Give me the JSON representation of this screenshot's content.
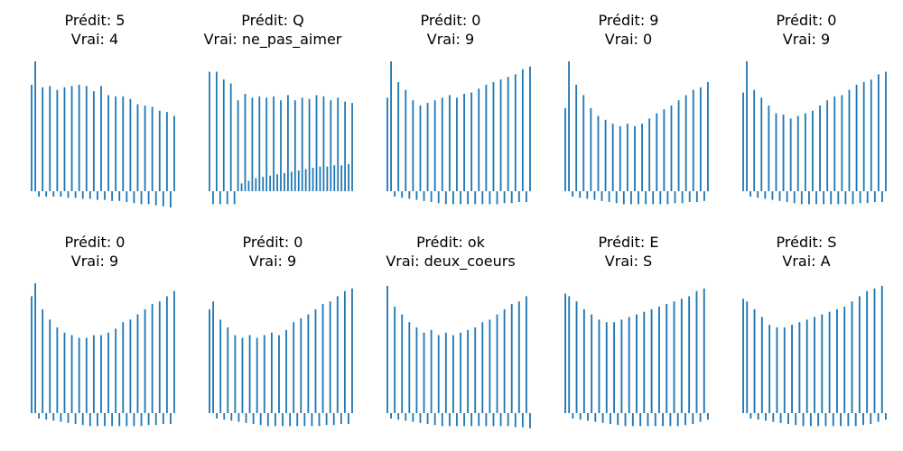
{
  "figure": {
    "bar_color": "#1f77b4",
    "background": "#ffffff"
  },
  "chart_data": [
    {
      "type": "bar",
      "title_pred": "Prédit: 5",
      "title_true": "Vrai: 4",
      "axes_visible": false,
      "grid": false,
      "values": [
        0.82,
        1.0,
        -0.05,
        0.8,
        -0.05,
        0.81,
        -0.05,
        0.78,
        -0.05,
        0.8,
        -0.06,
        0.81,
        -0.06,
        0.82,
        -0.07,
        0.81,
        -0.07,
        0.77,
        -0.08,
        0.81,
        -0.08,
        0.74,
        -0.09,
        0.73,
        -0.09,
        0.73,
        -0.1,
        0.71,
        -0.11,
        0.67,
        -0.12,
        0.66,
        -0.12,
        0.65,
        -0.13,
        0.62,
        -0.14,
        0.61,
        -0.15,
        0.58
      ]
    },
    {
      "type": "bar",
      "title_pred": "Prédit: Q",
      "title_true": "Vrai: ne_pas_aimer",
      "axes_visible": false,
      "grid": false,
      "values": [
        0.92,
        -0.12,
        0.92,
        -0.12,
        0.86,
        -0.12,
        0.83,
        -0.12,
        0.7,
        0.06,
        0.75,
        0.08,
        0.72,
        0.1,
        0.73,
        0.11,
        0.72,
        0.12,
        0.73,
        0.13,
        0.7,
        0.14,
        0.74,
        0.15,
        0.7,
        0.16,
        0.72,
        0.17,
        0.71,
        0.18,
        0.74,
        0.19,
        0.73,
        0.19,
        0.7,
        0.2,
        0.72,
        0.2,
        0.69,
        0.21,
        0.68
      ]
    },
    {
      "type": "bar",
      "title_pred": "Prédit: 0",
      "title_true": "Vrai: 9",
      "axes_visible": false,
      "grid": false,
      "values": [
        0.72,
        1.0,
        -0.05,
        0.84,
        -0.06,
        0.78,
        -0.07,
        0.7,
        -0.08,
        0.66,
        -0.09,
        0.68,
        -0.1,
        0.7,
        -0.11,
        0.72,
        -0.12,
        0.74,
        -0.12,
        0.72,
        -0.12,
        0.75,
        -0.12,
        0.76,
        -0.12,
        0.79,
        -0.12,
        0.82,
        -0.12,
        0.84,
        -0.12,
        0.86,
        -0.11,
        0.88,
        -0.11,
        0.9,
        -0.1,
        0.94,
        -0.1,
        0.96
      ]
    },
    {
      "type": "bar",
      "title_pred": "Prédit: 9",
      "title_true": "Vrai: 0",
      "axes_visible": false,
      "grid": false,
      "values": [
        0.64,
        1.0,
        -0.05,
        0.82,
        -0.06,
        0.74,
        -0.07,
        0.64,
        -0.08,
        0.58,
        -0.09,
        0.55,
        -0.1,
        0.52,
        -0.11,
        0.5,
        -0.12,
        0.52,
        -0.12,
        0.5,
        -0.12,
        0.52,
        -0.12,
        0.56,
        -0.12,
        0.6,
        -0.12,
        0.63,
        -0.12,
        0.66,
        -0.11,
        0.7,
        -0.11,
        0.74,
        -0.1,
        0.78,
        -0.1,
        0.8,
        -0.09,
        0.84
      ]
    },
    {
      "type": "bar",
      "title_pred": "Prédit: 0",
      "title_true": "Vrai: 9",
      "axes_visible": false,
      "grid": false,
      "values": [
        0.76,
        1.0,
        -0.05,
        0.78,
        -0.06,
        0.72,
        -0.07,
        0.66,
        -0.08,
        0.6,
        -0.09,
        0.59,
        -0.1,
        0.56,
        -0.11,
        0.58,
        -0.12,
        0.6,
        -0.12,
        0.62,
        -0.12,
        0.66,
        -0.12,
        0.7,
        -0.12,
        0.73,
        -0.12,
        0.74,
        -0.12,
        0.78,
        -0.12,
        0.82,
        -0.11,
        0.84,
        -0.11,
        0.86,
        -0.1,
        0.9,
        -0.1,
        0.92
      ]
    },
    {
      "type": "bar",
      "title_pred": "Prédit: 0",
      "title_true": "Vrai: 9",
      "axes_visible": false,
      "grid": false,
      "values": [
        0.9,
        1.0,
        -0.05,
        0.8,
        -0.06,
        0.72,
        -0.07,
        0.66,
        -0.08,
        0.62,
        -0.09,
        0.6,
        -0.1,
        0.58,
        -0.11,
        0.58,
        -0.12,
        0.6,
        -0.12,
        0.6,
        -0.12,
        0.62,
        -0.12,
        0.65,
        -0.12,
        0.7,
        -0.12,
        0.72,
        -0.12,
        0.76,
        -0.12,
        0.8,
        -0.11,
        0.84,
        -0.11,
        0.86,
        -0.1,
        0.9,
        -0.1,
        0.94
      ]
    },
    {
      "type": "bar",
      "title_pred": "Prédit: 0",
      "title_true": "Vrai: 9",
      "axes_visible": false,
      "grid": false,
      "values": [
        0.8,
        0.86,
        -0.05,
        0.72,
        -0.06,
        0.66,
        -0.07,
        0.6,
        -0.08,
        0.58,
        -0.09,
        0.6,
        -0.1,
        0.58,
        -0.11,
        0.6,
        -0.12,
        0.62,
        -0.12,
        0.6,
        -0.12,
        0.64,
        -0.12,
        0.7,
        -0.12,
        0.73,
        -0.12,
        0.76,
        -0.12,
        0.8,
        -0.12,
        0.84,
        -0.11,
        0.86,
        -0.11,
        0.9,
        -0.1,
        0.94,
        -0.1,
        0.96
      ]
    },
    {
      "type": "bar",
      "title_pred": "Prédit: ok",
      "title_true": "Vrai: deux_coeurs",
      "axes_visible": false,
      "grid": false,
      "values": [
        0.98,
        -0.05,
        0.82,
        -0.06,
        0.76,
        -0.07,
        0.7,
        -0.08,
        0.66,
        -0.09,
        0.62,
        -0.1,
        0.64,
        -0.11,
        0.6,
        -0.12,
        0.62,
        -0.12,
        0.6,
        -0.12,
        0.62,
        -0.12,
        0.64,
        -0.12,
        0.66,
        -0.12,
        0.7,
        -0.12,
        0.72,
        -0.12,
        0.76,
        -0.12,
        0.8,
        -0.12,
        0.84,
        -0.13,
        0.86,
        -0.13,
        0.9,
        -0.14
      ]
    },
    {
      "type": "bar",
      "title_pred": "Prédit: E",
      "title_true": "Vrai: S",
      "axes_visible": false,
      "grid": false,
      "values": [
        0.92,
        0.9,
        -0.05,
        0.86,
        -0.06,
        0.8,
        -0.07,
        0.76,
        -0.08,
        0.72,
        -0.09,
        0.7,
        -0.1,
        0.7,
        -0.11,
        0.72,
        -0.12,
        0.74,
        -0.12,
        0.76,
        -0.12,
        0.78,
        -0.12,
        0.8,
        -0.12,
        0.82,
        -0.12,
        0.84,
        -0.12,
        0.86,
        -0.12,
        0.88,
        -0.11,
        0.9,
        -0.1,
        0.94,
        -0.08,
        0.96,
        -0.06
      ]
    },
    {
      "type": "bar",
      "title_pred": "Prédit: S",
      "title_true": "Vrai: A",
      "axes_visible": false,
      "grid": false,
      "values": [
        0.88,
        0.86,
        -0.05,
        0.8,
        -0.06,
        0.74,
        -0.07,
        0.68,
        -0.08,
        0.66,
        -0.09,
        0.66,
        -0.1,
        0.68,
        -0.11,
        0.7,
        -0.12,
        0.72,
        -0.12,
        0.74,
        -0.12,
        0.76,
        -0.12,
        0.78,
        -0.12,
        0.8,
        -0.12,
        0.82,
        -0.12,
        0.86,
        -0.12,
        0.9,
        -0.11,
        0.94,
        -0.1,
        0.96,
        -0.08,
        0.98,
        -0.06
      ]
    }
  ]
}
